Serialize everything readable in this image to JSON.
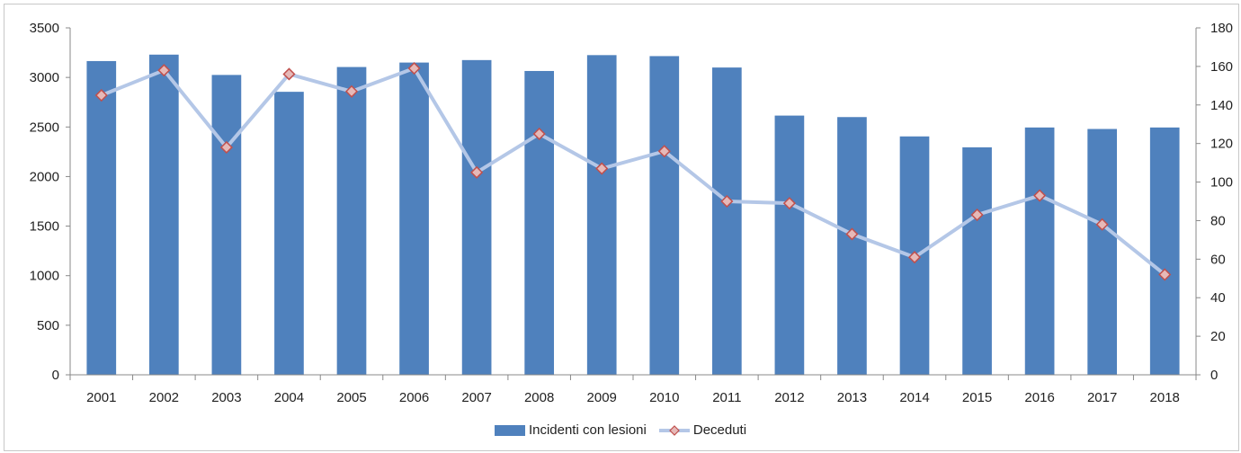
{
  "chart_data": {
    "type": "bar",
    "categories": [
      "2001",
      "2002",
      "2003",
      "2004",
      "2005",
      "2006",
      "2007",
      "2008",
      "2009",
      "2010",
      "2011",
      "2012",
      "2013",
      "2014",
      "2015",
      "2016",
      "2017",
      "2018"
    ],
    "series": [
      {
        "name": "Incidenti con lesioni",
        "type": "bar",
        "axis": "left",
        "color": "#4f81bd",
        "values": [
          3165,
          3230,
          3025,
          2855,
          3105,
          3150,
          3175,
          3065,
          3225,
          3215,
          3100,
          2615,
          2600,
          2405,
          2295,
          2495,
          2480,
          2495
        ]
      },
      {
        "name": "Deceduti",
        "type": "line",
        "axis": "right",
        "color": "#b4c7e7",
        "marker_fill": "#e6b9b8",
        "marker_stroke": "#c0504d",
        "values": [
          145,
          158,
          118,
          156,
          147,
          159,
          105,
          125,
          107,
          116,
          90,
          89,
          73,
          61,
          83,
          93,
          78,
          52
        ]
      }
    ],
    "y_left": {
      "min": 0,
      "max": 3500,
      "ticks": [
        "0",
        "500",
        "1000",
        "1500",
        "2000",
        "2500",
        "3000",
        "3500"
      ]
    },
    "y_right": {
      "min": 0,
      "max": 180,
      "ticks": [
        "0",
        "20",
        "40",
        "60",
        "80",
        "100",
        "120",
        "140",
        "160",
        "180"
      ]
    },
    "grid": false,
    "legend_position": "bottom",
    "title": "",
    "xlabel": "",
    "ylabel": ""
  }
}
